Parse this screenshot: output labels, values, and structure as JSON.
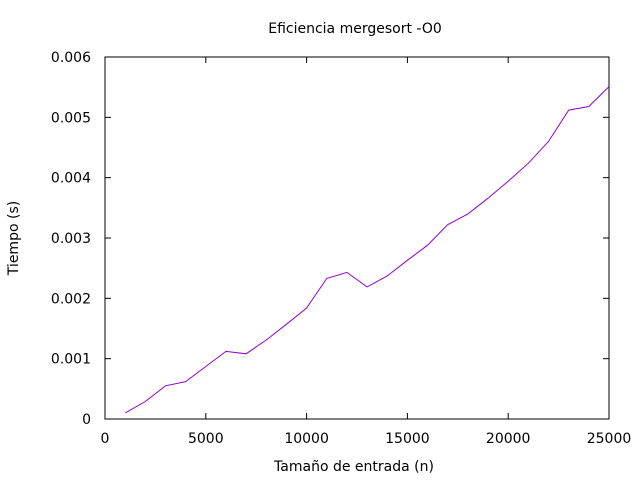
{
  "chart_data": {
    "type": "line",
    "title": "Eficiencia mergesort -O0",
    "xlabel": "Tamaño de entrada (n)",
    "ylabel": "Tiempo (s)",
    "xlim": [
      0,
      25000
    ],
    "ylim": [
      0,
      0.006
    ],
    "xticks": [
      "0",
      "5000",
      "10000",
      "15000",
      "20000",
      "25000"
    ],
    "yticks": [
      "0",
      "0.001",
      "0.002",
      "0.003",
      "0.004",
      "0.005",
      "0.006"
    ],
    "grid": false,
    "legend": "none",
    "series": [
      {
        "color": "#9400d3",
        "x": [
          1000,
          2000,
          3000,
          4000,
          5000,
          6000,
          7000,
          8000,
          9000,
          10000,
          11000,
          12000,
          13000,
          14000,
          15000,
          16000,
          17000,
          18000,
          19000,
          20000,
          21000,
          22000,
          23000,
          24000,
          25000
        ],
        "y": [
          0.0001,
          0.00029,
          0.00055,
          0.00062,
          0.00087,
          0.00112,
          0.00108,
          0.00131,
          0.00157,
          0.00184,
          0.00233,
          0.00243,
          0.00219,
          0.00237,
          0.00263,
          0.00288,
          0.00322,
          0.0034,
          0.00366,
          0.00394,
          0.00424,
          0.0046,
          0.00512,
          0.00518,
          0.00551
        ]
      }
    ]
  }
}
